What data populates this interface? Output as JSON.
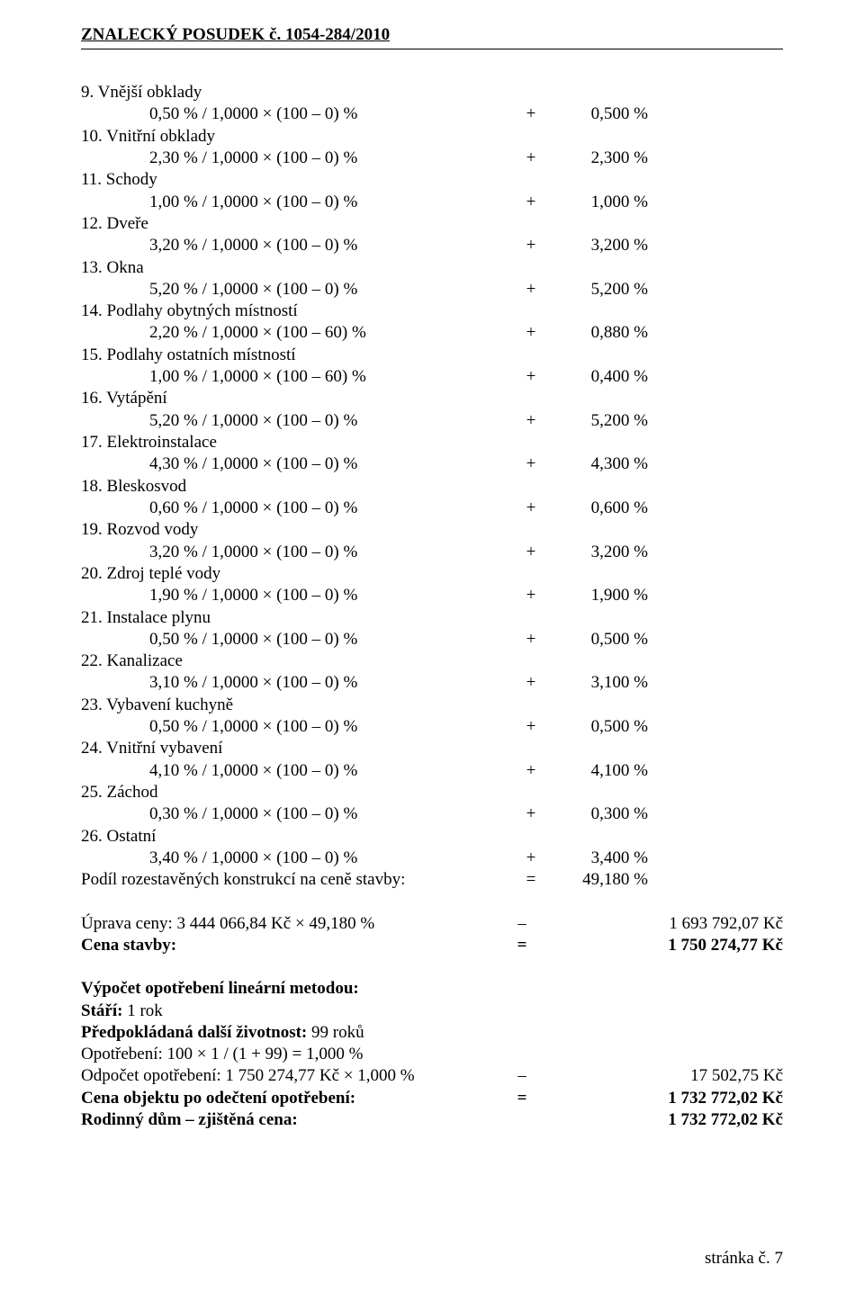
{
  "header": "ZNALECKÝ  POSUDEK č.  1054-284/2010",
  "items": [
    {
      "n": "9",
      "name": "Vnější obklady",
      "calc": "0,50 % / 1,0000 × (100 – 0) %",
      "sign": "+",
      "val": "0,500 %"
    },
    {
      "n": "10",
      "name": "Vnitřní obklady",
      "calc": "2,30 % / 1,0000 × (100 – 0) %",
      "sign": "+",
      "val": "2,300 %"
    },
    {
      "n": "11",
      "name": "Schody",
      "calc": "1,00 % / 1,0000 × (100 – 0) %",
      "sign": "+",
      "val": "1,000 %"
    },
    {
      "n": "12",
      "name": "Dveře",
      "calc": "3,20 % / 1,0000 × (100 – 0) %",
      "sign": "+",
      "val": "3,200 %"
    },
    {
      "n": "13",
      "name": "Okna",
      "calc": "5,20 % / 1,0000 × (100 – 0) %",
      "sign": "+",
      "val": "5,200 %"
    },
    {
      "n": "14",
      "name": "Podlahy obytných místností",
      "calc": "2,20 % / 1,0000 × (100 – 60) %",
      "sign": "+",
      "val": "0,880 %"
    },
    {
      "n": "15",
      "name": "Podlahy ostatních místností",
      "calc": "1,00 % / 1,0000 × (100 – 60) %",
      "sign": "+",
      "val": "0,400 %"
    },
    {
      "n": "16",
      "name": "Vytápění",
      "calc": "5,20 % / 1,0000 × (100 – 0) %",
      "sign": "+",
      "val": "5,200 %"
    },
    {
      "n": "17",
      "name": "Elektroinstalace",
      "calc": "4,30 % / 1,0000 × (100 – 0) %",
      "sign": "+",
      "val": "4,300 %"
    },
    {
      "n": "18",
      "name": "Bleskosvod",
      "calc": "0,60 % / 1,0000 × (100 – 0) %",
      "sign": "+",
      "val": "0,600 %"
    },
    {
      "n": "19",
      "name": "Rozvod vody",
      "calc": "3,20 % / 1,0000 × (100 – 0) %",
      "sign": "+",
      "val": "3,200 %"
    },
    {
      "n": "20",
      "name": "Zdroj teplé vody",
      "calc": "1,90 % / 1,0000 × (100 – 0) %",
      "sign": "+",
      "val": "1,900 %"
    },
    {
      "n": "21",
      "name": "Instalace plynu",
      "calc": "0,50 % / 1,0000 × (100 – 0) %",
      "sign": "+",
      "val": "0,500 %"
    },
    {
      "n": "22",
      "name": "Kanalizace",
      "calc": "3,10 % / 1,0000 × (100 – 0) %",
      "sign": "+",
      "val": "3,100 %"
    },
    {
      "n": "23",
      "name": "Vybavení kuchyně",
      "calc": "0,50 % / 1,0000 × (100 – 0) %",
      "sign": "+",
      "val": "0,500 %"
    },
    {
      "n": "24",
      "name": "Vnitřní vybavení",
      "calc": "4,10 % / 1,0000 × (100 – 0) %",
      "sign": "+",
      "val": "4,100 %"
    },
    {
      "n": "25",
      "name": "Záchod",
      "calc": "0,30 % / 1,0000 × (100 – 0) %",
      "sign": "+",
      "val": "0,300 %"
    },
    {
      "n": "26",
      "name": "Ostatní",
      "calc": "3,40 % / 1,0000 × (100 – 0) %",
      "sign": "+",
      "val": "3,400 %"
    }
  ],
  "podil": {
    "label": "Podíl rozestavěných konstrukcí na ceně stavby:",
    "sign": "=",
    "val": "49,180 %"
  },
  "uprava": {
    "label": "Úprava ceny: 3 444 066,84 Kč × 49,180 %",
    "sign": "–",
    "val": "1 693 792,07 Kč"
  },
  "cena_stavby": {
    "label": "Cena stavby:",
    "sign": "=",
    "val": "1 750 274,77 Kč"
  },
  "wear_heading": "Výpočet opotřebení lineární metodou:",
  "stari_label": "Stáří:",
  "stari_val": " 1 rok",
  "ziv_label": "Předpokládaná další životnost:",
  "ziv_val": " 99 roků",
  "opot_calc": "Opotřebení: 100 × 1 / (1 + 99) = 1,000 %",
  "odpocet": {
    "label": "Odpočet opotřebení: 1 750 274,77 Kč × 1,000 %",
    "sign": "–",
    "val": "17 502,75 Kč"
  },
  "cena_po": {
    "label": "Cena objektu po odečtení opotřebení:",
    "sign": "=",
    "val": "1 732 772,02 Kč"
  },
  "rd": {
    "label": "Rodinný dům – zjištěná cena:",
    "val": "1 732 772,02 Kč"
  },
  "footer": "stránka č. 7"
}
